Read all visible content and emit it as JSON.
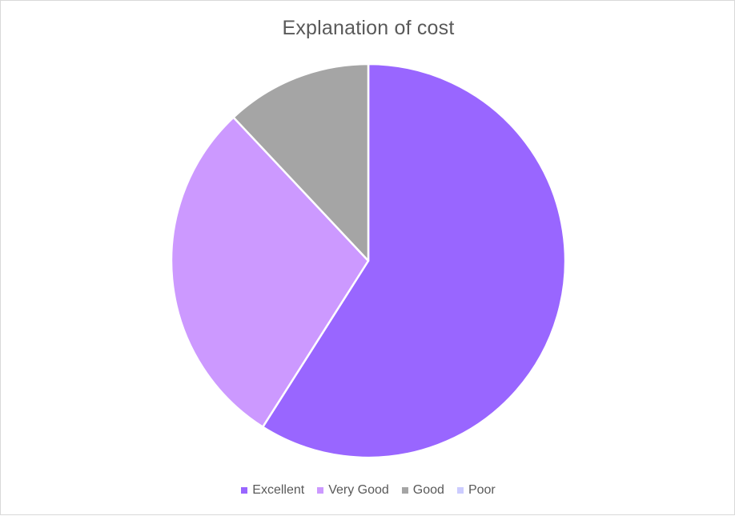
{
  "chart_data": {
    "type": "pie",
    "title": "Explanation of cost",
    "categories": [
      "Excellent",
      "Very Good",
      "Good",
      "Poor"
    ],
    "values": [
      59,
      29,
      12,
      0
    ],
    "colors": [
      "#9966ff",
      "#cc99ff",
      "#a5a5a5",
      "#ccccff"
    ],
    "start_angle_deg": 0,
    "direction": "clockwise",
    "legend_position": "bottom",
    "data_labels": false
  }
}
